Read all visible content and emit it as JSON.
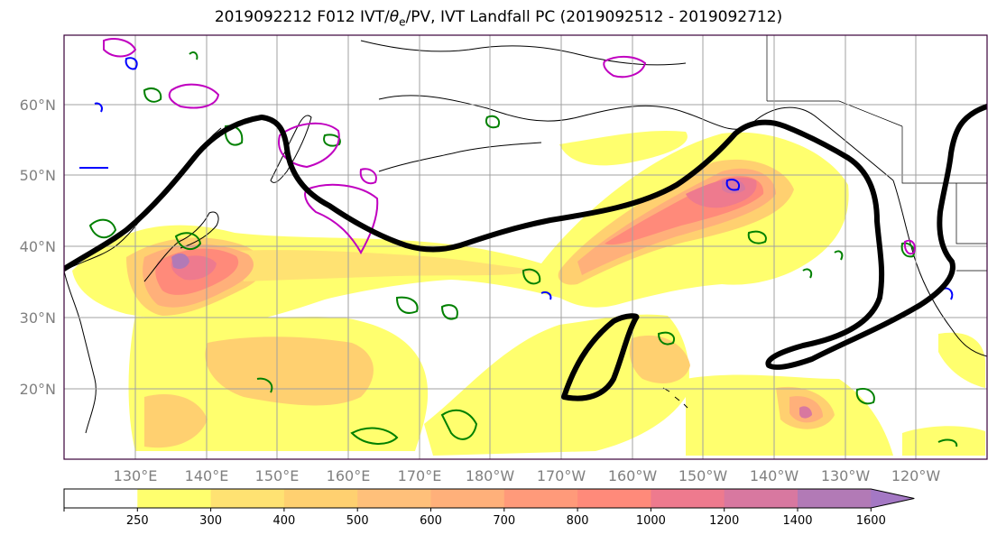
{
  "title": {
    "init": "2019092212 F012 IVT/",
    "theta": "θ",
    "theta_sub": "e",
    "rest": "/PV, IVT Landfall PC (2019092512 - 2019092712)"
  },
  "map": {
    "lat_labels": [
      "60°N",
      "50°N",
      "40°N",
      "30°N",
      "20°N"
    ],
    "lon_labels": [
      "130°E",
      "140°E",
      "150°E",
      "160°E",
      "170°E",
      "180°W",
      "170°W",
      "160°W",
      "150°W",
      "140°W",
      "130°W",
      "120°W"
    ],
    "lat_values": [
      60,
      50,
      40,
      30,
      20
    ],
    "lon_values": [
      130,
      140,
      150,
      160,
      170,
      180,
      -170,
      -160,
      -150,
      -140,
      -130,
      -120
    ],
    "colors": {
      "land_outline": "#000000",
      "grid": "#a0a0a0",
      "pc_contour": "#000000",
      "theta_e_contour": "#008000",
      "pv_contour_magenta": "#c000c0",
      "pv_contour_blue": "#0000ff",
      "tick_label": "#808080"
    }
  },
  "colorbar": {
    "ticks": [
      "250",
      "300",
      "400",
      "500",
      "600",
      "700",
      "800",
      "1000",
      "1200",
      "1400",
      "1600"
    ],
    "colors": [
      "#ffffff",
      "#ffff6e",
      "#ffe272",
      "#ffd070",
      "#ffc07a",
      "#ffb07a",
      "#ff9a7a",
      "#ff8a7a",
      "#ee7a8e",
      "#d878a0",
      "#b27ab6",
      "#a478c4"
    ]
  }
}
